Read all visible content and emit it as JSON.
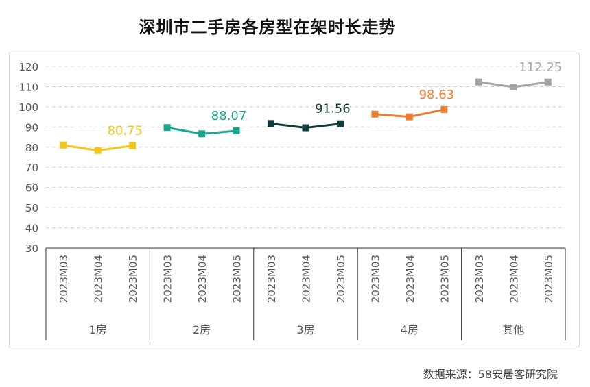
{
  "title": "深圳市二手房各房型在架时长走势",
  "source": "数据来源：58安居客研究院",
  "chart_data": {
    "type": "line",
    "title": "深圳市二手房各房型在架时长走势",
    "xlabel": "",
    "ylabel": "",
    "ylim": [
      30,
      120
    ],
    "yticks": [
      30,
      40,
      50,
      60,
      70,
      80,
      90,
      100,
      110,
      120
    ],
    "grid": true,
    "groups": [
      "1房",
      "2房",
      "3房",
      "4房",
      "其他"
    ],
    "periods": [
      "2023M03",
      "2023M04",
      "2023M05"
    ],
    "series": [
      {
        "name": "1房",
        "color": "#F5C51A",
        "values": [
          81.0,
          78.3,
          80.75
        ],
        "label": "80.75"
      },
      {
        "name": "2房",
        "color": "#1BA792",
        "values": [
          89.7,
          86.6,
          88.07
        ],
        "label": "88.07"
      },
      {
        "name": "3房",
        "color": "#0E3D3B",
        "values": [
          91.7,
          89.6,
          91.56
        ],
        "label": "91.56"
      },
      {
        "name": "4房",
        "color": "#ED7D31",
        "values": [
          96.3,
          95.0,
          98.63
        ],
        "label": "98.63"
      },
      {
        "name": "其他",
        "color": "#A5A5A5",
        "values": [
          112.3,
          109.8,
          112.25
        ],
        "label": "112.25"
      }
    ]
  }
}
